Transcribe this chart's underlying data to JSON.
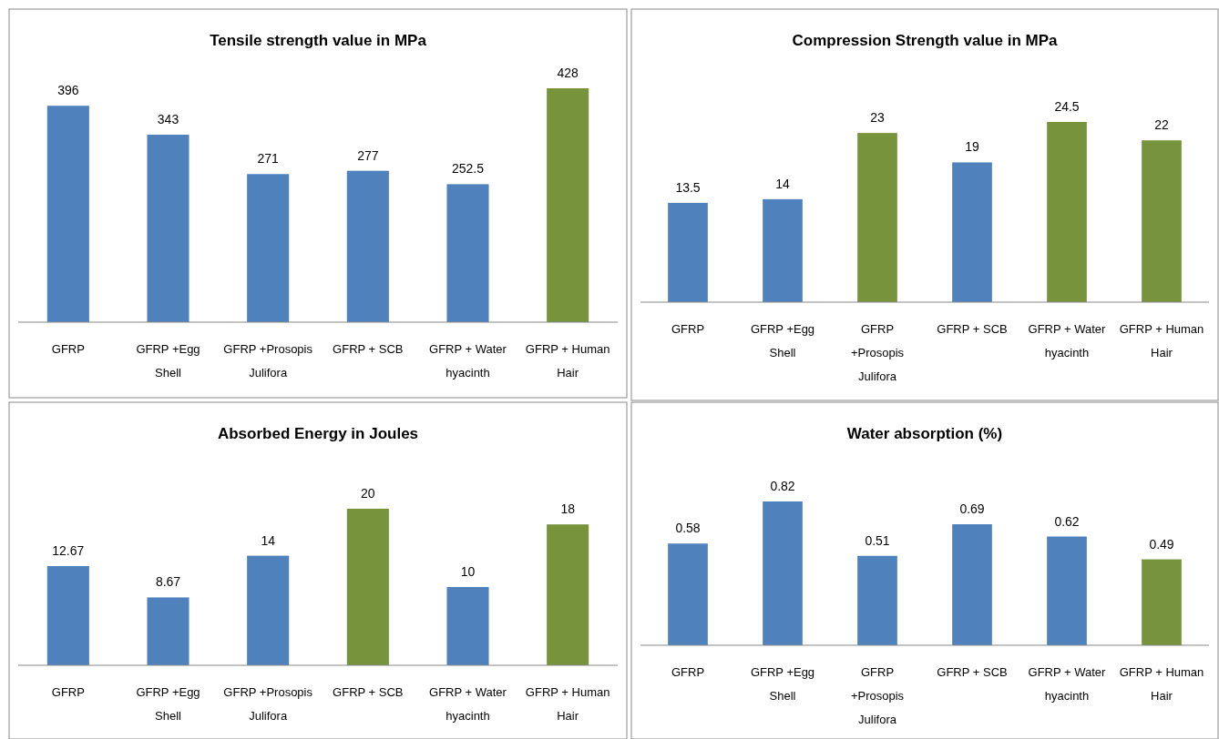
{
  "chart_data": [
    {
      "type": "bar",
      "title": "Tensile strength  value in MPa",
      "categories": [
        "GFRP",
        "GFRP +Egg Shell",
        "GFRP +Prosopis Julifora",
        "GFRP + SCB",
        "GFRP + Water hyacinth",
        "GFRP + Human Hair"
      ],
      "values": [
        396,
        343,
        271,
        277,
        252.5,
        428
      ],
      "colors": [
        "#4f81bd",
        "#4f81bd",
        "#4f81bd",
        "#4f81bd",
        "#4f81bd",
        "#77933c"
      ],
      "data_labels": true
    },
    {
      "type": "bar",
      "title": "Compression Strength value in MPa",
      "categories": [
        "GFRP",
        "GFRP +Egg Shell",
        "GFRP +Prosopis Julifora",
        "GFRP + SCB",
        "GFRP + Water hyacinth",
        "GFRP + Human Hair"
      ],
      "values": [
        13.5,
        14,
        23,
        19,
        24.5,
        22
      ],
      "colors": [
        "#4f81bd",
        "#4f81bd",
        "#77933c",
        "#4f81bd",
        "#77933c",
        "#77933c"
      ],
      "data_labels": true
    },
    {
      "type": "bar",
      "title": "Absorbed Energy in Joules",
      "categories": [
        "GFRP",
        "GFRP +Egg Shell",
        "GFRP +Prosopis Julifora",
        "GFRP + SCB",
        "GFRP + Water hyacinth",
        "GFRP + Human Hair"
      ],
      "values": [
        12.67,
        8.67,
        14,
        20,
        10,
        18
      ],
      "colors": [
        "#4f81bd",
        "#4f81bd",
        "#4f81bd",
        "#77933c",
        "#4f81bd",
        "#77933c"
      ],
      "data_labels": true
    },
    {
      "type": "bar",
      "title": "Water absorption (%)",
      "categories": [
        "GFRP",
        "GFRP +Egg Shell",
        "GFRP +Prosopis Julifora",
        "GFRP + SCB",
        "GFRP + Water hyacinth",
        "GFRP + Human Hair"
      ],
      "values": [
        0.58,
        0.82,
        0.51,
        0.69,
        0.62,
        0.49
      ],
      "colors": [
        "#4f81bd",
        "#4f81bd",
        "#4f81bd",
        "#4f81bd",
        "#4f81bd",
        "#77933c"
      ],
      "data_labels": true
    }
  ]
}
